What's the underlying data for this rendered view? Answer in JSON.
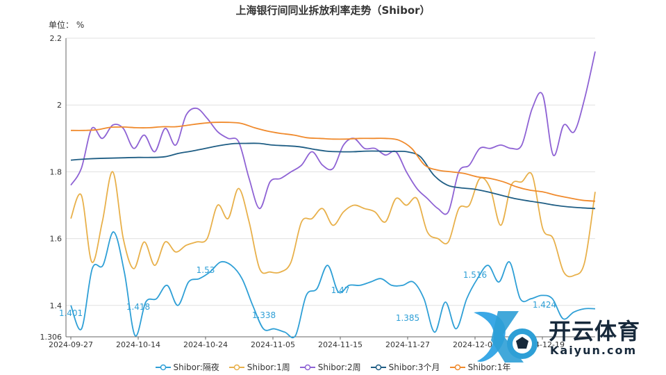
{
  "title": "上海银行间同业拆放利率走势（Shibor）",
  "unit_label": "单位：  %",
  "colors": {
    "series": [
      "#2e9fd6",
      "#e8b04a",
      "#8e62d4",
      "#1e5d84",
      "#f08a2c"
    ],
    "grid": "#e0e0e0",
    "axis": "#666666"
  },
  "watermark": {
    "brand": "开云体育",
    "url": "Kaiyun.com"
  },
  "chart_data": {
    "type": "line",
    "x_ticks": [
      "2024-09-27",
      "2024-10-14",
      "2024-10-24",
      "2024-11-05",
      "2024-11-15",
      "2024-11-27",
      "2024-12-09",
      "2024-12-19"
    ],
    "y_ticks": [
      "1.306",
      "1.4",
      "1.6",
      "1.8",
      "2",
      "2.2"
    ],
    "ylim": [
      1.306,
      2.2
    ],
    "grid": true,
    "legend_position": "bottom",
    "point_labels": [
      "1.401",
      "1.418",
      "1.53",
      "1.338",
      "1.47",
      "1.385",
      "1.516",
      "1.424"
    ],
    "series": [
      {
        "name": "Shibor:隔夜",
        "values": [
          1.4,
          1.33,
          1.51,
          1.52,
          1.62,
          1.5,
          1.31,
          1.41,
          1.42,
          1.46,
          1.4,
          1.47,
          1.48,
          1.5,
          1.53,
          1.52,
          1.48,
          1.4,
          1.33,
          1.33,
          1.32,
          1.31,
          1.43,
          1.45,
          1.52,
          1.44,
          1.46,
          1.46,
          1.47,
          1.48,
          1.46,
          1.46,
          1.47,
          1.42,
          1.32,
          1.41,
          1.33,
          1.42,
          1.48,
          1.52,
          1.47,
          1.53,
          1.42,
          1.42,
          1.43,
          1.42,
          1.36,
          1.38,
          1.39,
          1.39
        ]
      },
      {
        "name": "Shibor:1周",
        "values": [
          1.66,
          1.73,
          1.53,
          1.65,
          1.8,
          1.6,
          1.51,
          1.59,
          1.52,
          1.59,
          1.56,
          1.58,
          1.59,
          1.6,
          1.7,
          1.66,
          1.75,
          1.65,
          1.51,
          1.5,
          1.5,
          1.53,
          1.65,
          1.66,
          1.69,
          1.64,
          1.68,
          1.7,
          1.69,
          1.68,
          1.65,
          1.72,
          1.7,
          1.72,
          1.62,
          1.6,
          1.59,
          1.69,
          1.7,
          1.78,
          1.75,
          1.64,
          1.76,
          1.77,
          1.79,
          1.63,
          1.6,
          1.5,
          1.49,
          1.53,
          1.74
        ]
      },
      {
        "name": "Shibor:2周",
        "values": [
          1.76,
          1.81,
          1.93,
          1.9,
          1.94,
          1.93,
          1.87,
          1.91,
          1.86,
          1.93,
          1.88,
          1.97,
          1.99,
          1.96,
          1.92,
          1.9,
          1.89,
          1.78,
          1.69,
          1.77,
          1.78,
          1.8,
          1.82,
          1.86,
          1.82,
          1.81,
          1.88,
          1.9,
          1.87,
          1.87,
          1.85,
          1.86,
          1.8,
          1.75,
          1.72,
          1.69,
          1.68,
          1.8,
          1.82,
          1.87,
          1.87,
          1.88,
          1.87,
          1.88,
          1.99,
          2.03,
          1.85,
          1.94,
          1.92,
          2.02,
          2.16
        ]
      },
      {
        "name": "Shibor:3个月",
        "values": [
          1.835,
          1.838,
          1.84,
          1.841,
          1.842,
          1.843,
          1.843,
          1.845,
          1.855,
          1.862,
          1.87,
          1.878,
          1.884,
          1.885,
          1.885,
          1.88,
          1.878,
          1.875,
          1.868,
          1.862,
          1.86,
          1.86,
          1.862,
          1.862,
          1.861,
          1.86,
          1.845,
          1.79,
          1.76,
          1.752,
          1.748,
          1.74,
          1.73,
          1.72,
          1.713,
          1.707,
          1.7,
          1.695,
          1.692,
          1.69
        ]
      },
      {
        "name": "Shibor:1年",
        "values": [
          1.924,
          1.924,
          1.926,
          1.933,
          1.934,
          1.932,
          1.932,
          1.935,
          1.935,
          1.94,
          1.945,
          1.948,
          1.948,
          1.945,
          1.932,
          1.922,
          1.915,
          1.91,
          1.902,
          1.9,
          1.898,
          1.898,
          1.9,
          1.9,
          1.9,
          1.895,
          1.87,
          1.82,
          1.805,
          1.8,
          1.795,
          1.785,
          1.78,
          1.77,
          1.755,
          1.745,
          1.74,
          1.73,
          1.722,
          1.715,
          1.712
        ]
      }
    ]
  }
}
